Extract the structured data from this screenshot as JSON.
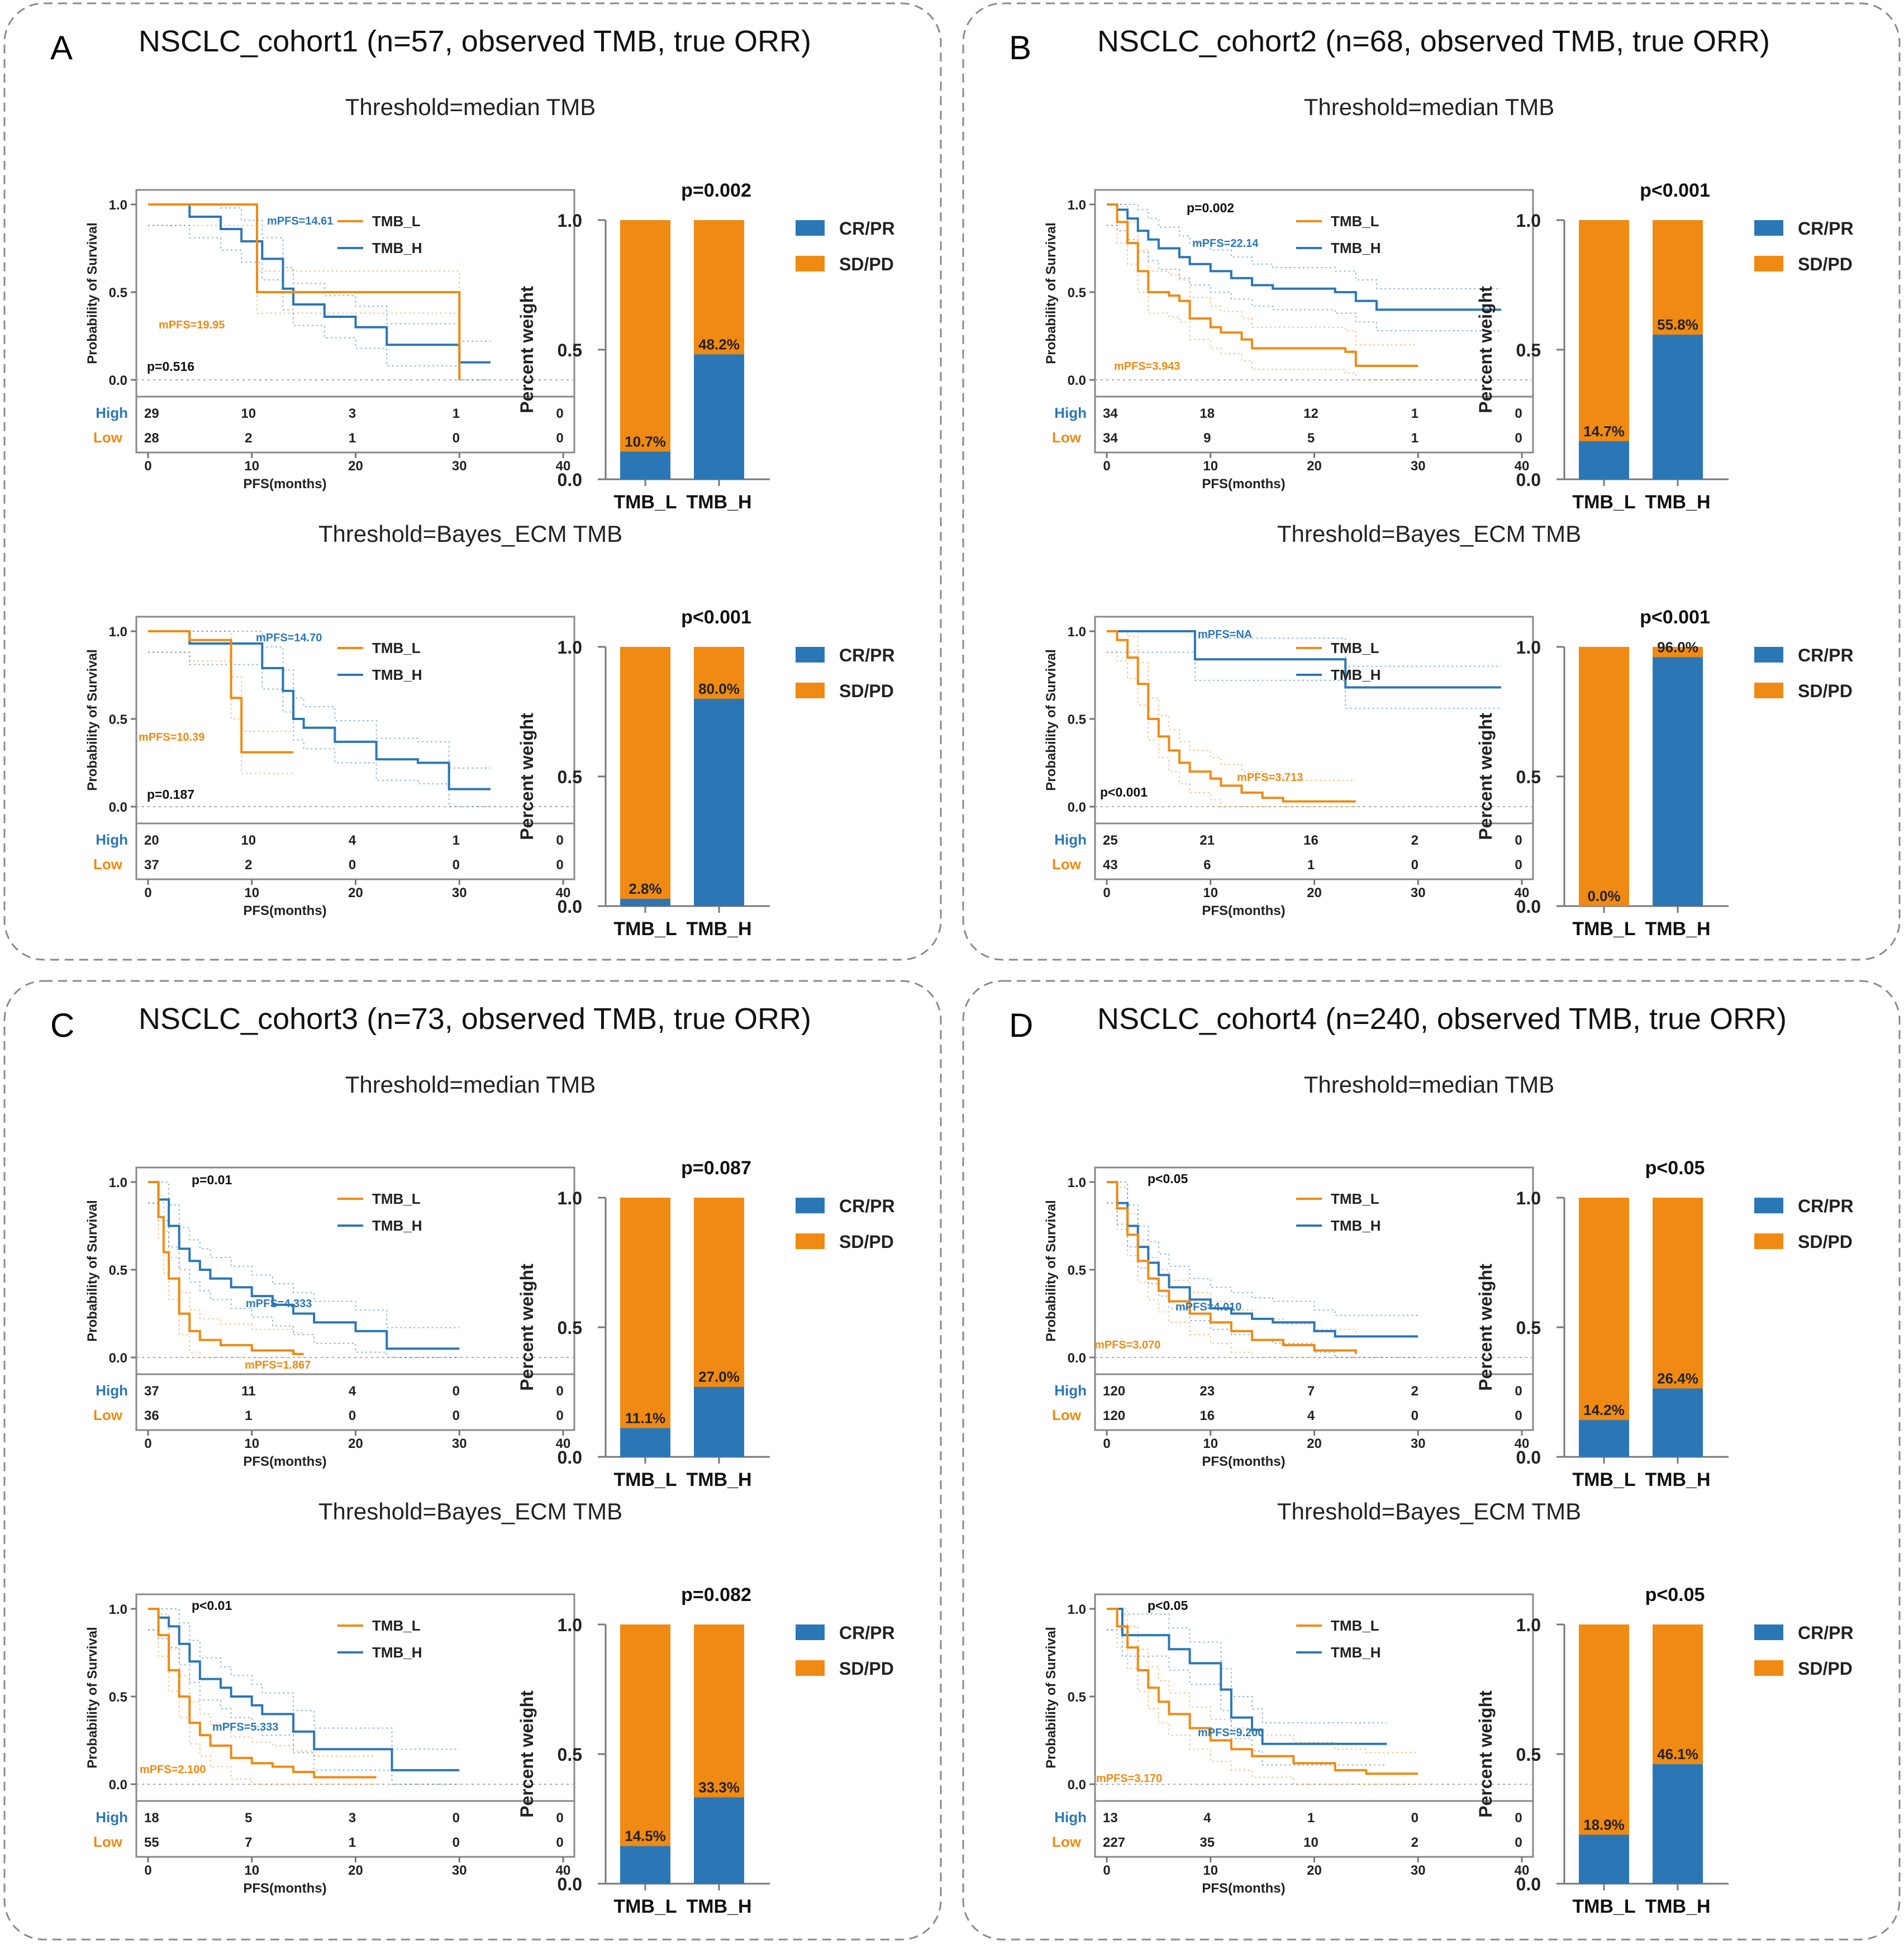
{
  "colors": {
    "low": "#f08a12",
    "high": "#2b77b6",
    "frame": "#8a8a8a"
  },
  "common": {
    "km_ylabel": "Probability of Survival",
    "km_xlabel": "PFS(months)",
    "km_xticks": [
      "0",
      "10",
      "20",
      "30",
      "40"
    ],
    "km_yticks": [
      "0.0",
      "0.5",
      "1.0"
    ],
    "risk_high": "High",
    "risk_low": "Low",
    "legend_low": "TMB_L",
    "legend_high": "TMB_H",
    "bar_ylabel": "Percent weight",
    "bar_yticks": [
      "0.0",
      "0.5",
      "1.0"
    ],
    "bar_categories": [
      "TMB_L",
      "TMB_H"
    ],
    "legend_crpr": "CR/PR",
    "legend_sdpd": "SD/PD"
  },
  "panels": [
    {
      "letter": "A",
      "title": "NSCLC_cohort1 (n=57, observed TMB, true ORR)"
    },
    {
      "letter": "B",
      "title": "NSCLC_cohort2 (n=68, observed TMB, true ORR)"
    },
    {
      "letter": "C",
      "title": "NSCLC_cohort3 (n=73, observed TMB, true ORR)"
    },
    {
      "letter": "D",
      "title": "NSCLC_cohort4 (n=240, observed TMB, true ORR)"
    }
  ],
  "chart_data": [
    {
      "panel": "A",
      "threshold": "Threshold=median TMB",
      "type": "line",
      "km": {
        "pvalue": "p=0.516",
        "mpfs_low": "mPFS=19.95",
        "mpfs_high": "mPFS=14.61",
        "low_curve": [
          [
            0,
            1
          ],
          [
            10,
            1
          ],
          [
            10.5,
            0.5
          ],
          [
            30,
            0.5
          ],
          [
            30,
            0
          ]
        ],
        "high_curve": [
          [
            0,
            1
          ],
          [
            4,
            0.93
          ],
          [
            7,
            0.86
          ],
          [
            9,
            0.79
          ],
          [
            11,
            0.69
          ],
          [
            13,
            0.52
          ],
          [
            14,
            0.43
          ],
          [
            17,
            0.36
          ],
          [
            20,
            0.3
          ],
          [
            23,
            0.2
          ],
          [
            26,
            0.2
          ],
          [
            30,
            0.1
          ],
          [
            33,
            0.1
          ]
        ],
        "risk_high": [
          "29",
          "10",
          "3",
          "1",
          "0"
        ],
        "risk_low": [
          "28",
          "2",
          "1",
          "0",
          "0"
        ]
      },
      "bar": {
        "type": "bar",
        "pvalue": "p=0.002",
        "categories": [
          "TMB_L",
          "TMB_H"
        ],
        "crpr": [
          0.107,
          0.482
        ],
        "labels": [
          "10.7%",
          "48.2%"
        ]
      }
    },
    {
      "panel": "A",
      "threshold": "Threshold=Bayes_ECM TMB",
      "type": "line",
      "km": {
        "pvalue": "p=0.187",
        "mpfs_low": "mPFS=10.39",
        "mpfs_high": "mPFS=14.70",
        "low_curve": [
          [
            0,
            1
          ],
          [
            4,
            0.95
          ],
          [
            8,
            0.62
          ],
          [
            9,
            0.31
          ],
          [
            14,
            0.31
          ]
        ],
        "high_curve": [
          [
            0,
            1
          ],
          [
            4,
            0.93
          ],
          [
            9,
            0.93
          ],
          [
            11,
            0.79
          ],
          [
            13,
            0.66
          ],
          [
            14,
            0.5
          ],
          [
            15,
            0.45
          ],
          [
            18,
            0.37
          ],
          [
            22,
            0.27
          ],
          [
            26,
            0.25
          ],
          [
            29,
            0.1
          ],
          [
            33,
            0.1
          ]
        ],
        "risk_high": [
          "20",
          "10",
          "4",
          "1",
          "0"
        ],
        "risk_low": [
          "37",
          "2",
          "0",
          "0",
          "0"
        ]
      },
      "bar": {
        "type": "bar",
        "pvalue": "p<0.001",
        "categories": [
          "TMB_L",
          "TMB_H"
        ],
        "crpr": [
          0.028,
          0.8
        ],
        "labels": [
          "2.8%",
          "80.0%"
        ]
      }
    },
    {
      "panel": "B",
      "threshold": "Threshold=median TMB",
      "type": "line",
      "km": {
        "pvalue": "p=0.002",
        "mpfs_low": "mPFS=3.943",
        "mpfs_high": "mPFS=22.14",
        "low_curve": [
          [
            0,
            1
          ],
          [
            1,
            0.9
          ],
          [
            2,
            0.78
          ],
          [
            3,
            0.62
          ],
          [
            4,
            0.5
          ],
          [
            6,
            0.48
          ],
          [
            7,
            0.45
          ],
          [
            8,
            0.35
          ],
          [
            10,
            0.3
          ],
          [
            11,
            0.27
          ],
          [
            13,
            0.23
          ],
          [
            14,
            0.18
          ],
          [
            20,
            0.18
          ],
          [
            23,
            0.16
          ],
          [
            24,
            0.08
          ],
          [
            30,
            0.08
          ]
        ],
        "high_curve": [
          [
            0,
            1
          ],
          [
            1,
            0.97
          ],
          [
            2,
            0.92
          ],
          [
            3,
            0.85
          ],
          [
            4,
            0.8
          ],
          [
            5,
            0.75
          ],
          [
            7,
            0.7
          ],
          [
            8,
            0.66
          ],
          [
            10,
            0.62
          ],
          [
            12,
            0.58
          ],
          [
            14,
            0.54
          ],
          [
            16,
            0.52
          ],
          [
            22,
            0.5
          ],
          [
            24,
            0.45
          ],
          [
            26,
            0.4
          ],
          [
            38,
            0.4
          ]
        ],
        "risk_high": [
          "34",
          "18",
          "12",
          "1",
          "0"
        ],
        "risk_low": [
          "34",
          "9",
          "5",
          "1",
          "0"
        ]
      },
      "bar": {
        "type": "bar",
        "pvalue": "p<0.001",
        "categories": [
          "TMB_L",
          "TMB_H"
        ],
        "crpr": [
          0.147,
          0.558
        ],
        "labels": [
          "14.7%",
          "55.8%"
        ]
      }
    },
    {
      "panel": "B",
      "threshold": "Threshold=Bayes_ECM TMB",
      "type": "line",
      "km": {
        "pvalue": "p<0.001",
        "mpfs_low": "mPFS=3.713",
        "mpfs_high": "mPFS=NA",
        "low_curve": [
          [
            0,
            1
          ],
          [
            1,
            0.95
          ],
          [
            2,
            0.85
          ],
          [
            3,
            0.7
          ],
          [
            4,
            0.5
          ],
          [
            5,
            0.4
          ],
          [
            6,
            0.32
          ],
          [
            7,
            0.25
          ],
          [
            8,
            0.2
          ],
          [
            10,
            0.16
          ],
          [
            11,
            0.12
          ],
          [
            13,
            0.08
          ],
          [
            15,
            0.05
          ],
          [
            17,
            0.03
          ],
          [
            24,
            0.03
          ]
        ],
        "high_curve": [
          [
            0,
            1
          ],
          [
            8,
            1
          ],
          [
            8.5,
            0.84
          ],
          [
            22,
            0.84
          ],
          [
            23,
            0.68
          ],
          [
            38,
            0.68
          ]
        ],
        "risk_high": [
          "25",
          "21",
          "16",
          "2",
          "0"
        ],
        "risk_low": [
          "43",
          "6",
          "1",
          "0",
          "0"
        ]
      },
      "bar": {
        "type": "bar",
        "pvalue": "p<0.001",
        "categories": [
          "TMB_L",
          "TMB_H"
        ],
        "crpr": [
          0.0,
          0.96
        ],
        "labels": [
          "0.0%",
          "96.0%"
        ]
      }
    },
    {
      "panel": "C",
      "threshold": "Threshold=median TMB",
      "type": "line",
      "km": {
        "pvalue": "p=0.01",
        "mpfs_low": "mPFS=1.867",
        "mpfs_high": "mPFS=4.333",
        "low_curve": [
          [
            0,
            1
          ],
          [
            1,
            0.8
          ],
          [
            1.5,
            0.6
          ],
          [
            2,
            0.45
          ],
          [
            3,
            0.25
          ],
          [
            4,
            0.15
          ],
          [
            5,
            0.1
          ],
          [
            7,
            0.07
          ],
          [
            10,
            0.04
          ],
          [
            14,
            0.02
          ],
          [
            15,
            0.02
          ]
        ],
        "high_curve": [
          [
            0,
            1
          ],
          [
            1,
            0.9
          ],
          [
            2,
            0.75
          ],
          [
            3,
            0.62
          ],
          [
            4,
            0.55
          ],
          [
            5,
            0.5
          ],
          [
            6,
            0.45
          ],
          [
            8,
            0.4
          ],
          [
            10,
            0.35
          ],
          [
            12,
            0.3
          ],
          [
            14,
            0.25
          ],
          [
            16,
            0.2
          ],
          [
            20,
            0.15
          ],
          [
            23,
            0.05
          ],
          [
            30,
            0.05
          ]
        ],
        "risk_high": [
          "37",
          "11",
          "4",
          "0",
          "0"
        ],
        "risk_low": [
          "36",
          "1",
          "0",
          "0",
          "0"
        ]
      },
      "bar": {
        "type": "bar",
        "pvalue": "p=0.087",
        "categories": [
          "TMB_L",
          "TMB_H"
        ],
        "crpr": [
          0.111,
          0.27
        ],
        "labels": [
          "11.1%",
          "27.0%"
        ]
      }
    },
    {
      "panel": "C",
      "threshold": "Threshold=Bayes_ECM TMB",
      "type": "line",
      "km": {
        "pvalue": "p<0.01",
        "mpfs_low": "mPFS=2.100",
        "mpfs_high": "mPFS=5.333",
        "low_curve": [
          [
            0,
            1
          ],
          [
            1,
            0.85
          ],
          [
            2,
            0.65
          ],
          [
            3,
            0.5
          ],
          [
            4,
            0.35
          ],
          [
            5,
            0.28
          ],
          [
            6,
            0.22
          ],
          [
            8,
            0.15
          ],
          [
            10,
            0.12
          ],
          [
            12,
            0.1
          ],
          [
            14,
            0.07
          ],
          [
            16,
            0.04
          ],
          [
            22,
            0.04
          ]
        ],
        "high_curve": [
          [
            0,
            1
          ],
          [
            1,
            0.95
          ],
          [
            2,
            0.9
          ],
          [
            3,
            0.8
          ],
          [
            4,
            0.7
          ],
          [
            5,
            0.6
          ],
          [
            7,
            0.55
          ],
          [
            8,
            0.5
          ],
          [
            10,
            0.45
          ],
          [
            11,
            0.4
          ],
          [
            14,
            0.3
          ],
          [
            16,
            0.2
          ],
          [
            23,
            0.2
          ],
          [
            23.5,
            0.08
          ],
          [
            30,
            0.08
          ]
        ],
        "risk_high": [
          "18",
          "5",
          "3",
          "0",
          "0"
        ],
        "risk_low": [
          "55",
          "7",
          "1",
          "0",
          "0"
        ]
      },
      "bar": {
        "type": "bar",
        "pvalue": "p=0.082",
        "categories": [
          "TMB_L",
          "TMB_H"
        ],
        "crpr": [
          0.145,
          0.333
        ],
        "labels": [
          "14.5%",
          "33.3%"
        ]
      }
    },
    {
      "panel": "D",
      "threshold": "Threshold=median TMB",
      "type": "line",
      "km": {
        "pvalue": "p<0.05",
        "mpfs_low": "mPFS=3.070",
        "mpfs_high": "mPFS=4.010",
        "low_curve": [
          [
            0,
            1
          ],
          [
            1,
            0.85
          ],
          [
            2,
            0.7
          ],
          [
            3,
            0.55
          ],
          [
            4,
            0.45
          ],
          [
            5,
            0.38
          ],
          [
            6,
            0.32
          ],
          [
            8,
            0.25
          ],
          [
            10,
            0.2
          ],
          [
            12,
            0.15
          ],
          [
            14,
            0.1
          ],
          [
            17,
            0.07
          ],
          [
            20,
            0.04
          ],
          [
            24,
            0.02
          ]
        ],
        "high_curve": [
          [
            0,
            1
          ],
          [
            1,
            0.88
          ],
          [
            2,
            0.75
          ],
          [
            3,
            0.63
          ],
          [
            4,
            0.54
          ],
          [
            5,
            0.47
          ],
          [
            6,
            0.4
          ],
          [
            8,
            0.33
          ],
          [
            10,
            0.28
          ],
          [
            12,
            0.25
          ],
          [
            14,
            0.22
          ],
          [
            16,
            0.2
          ],
          [
            20,
            0.15
          ],
          [
            22,
            0.12
          ],
          [
            30,
            0.12
          ]
        ],
        "risk_high": [
          "120",
          "23",
          "7",
          "2",
          "0"
        ],
        "risk_low": [
          "120",
          "16",
          "4",
          "0",
          "0"
        ]
      },
      "bar": {
        "type": "bar",
        "pvalue": "p<0.05",
        "categories": [
          "TMB_L",
          "TMB_H"
        ],
        "crpr": [
          0.142,
          0.264
        ],
        "labels": [
          "14.2%",
          "26.4%"
        ]
      }
    },
    {
      "panel": "D",
      "threshold": "Threshold=Bayes_ECM TMB",
      "type": "line",
      "km": {
        "pvalue": "p<0.05",
        "mpfs_low": "mPFS=3.170",
        "mpfs_high": "mPFS=9.200",
        "low_curve": [
          [
            0,
            1
          ],
          [
            1,
            0.9
          ],
          [
            2,
            0.78
          ],
          [
            3,
            0.65
          ],
          [
            4,
            0.55
          ],
          [
            5,
            0.47
          ],
          [
            6,
            0.4
          ],
          [
            8,
            0.32
          ],
          [
            10,
            0.25
          ],
          [
            12,
            0.2
          ],
          [
            14,
            0.16
          ],
          [
            18,
            0.12
          ],
          [
            22,
            0.08
          ],
          [
            25,
            0.06
          ],
          [
            30,
            0.06
          ]
        ],
        "high_curve": [
          [
            0,
            1
          ],
          [
            1,
            1
          ],
          [
            1.5,
            0.85
          ],
          [
            4,
            0.85
          ],
          [
            6,
            0.77
          ],
          [
            8,
            0.69
          ],
          [
            11,
            0.54
          ],
          [
            12,
            0.38
          ],
          [
            14,
            0.31
          ],
          [
            15,
            0.23
          ],
          [
            27,
            0.23
          ]
        ],
        "risk_high": [
          "13",
          "4",
          "1",
          "0",
          "0"
        ],
        "risk_low": [
          "227",
          "35",
          "10",
          "2",
          "0"
        ]
      },
      "bar": {
        "type": "bar",
        "pvalue": "p<0.05",
        "categories": [
          "TMB_L",
          "TMB_H"
        ],
        "crpr": [
          0.189,
          0.461
        ],
        "labels": [
          "18.9%",
          "46.1%"
        ]
      }
    }
  ]
}
